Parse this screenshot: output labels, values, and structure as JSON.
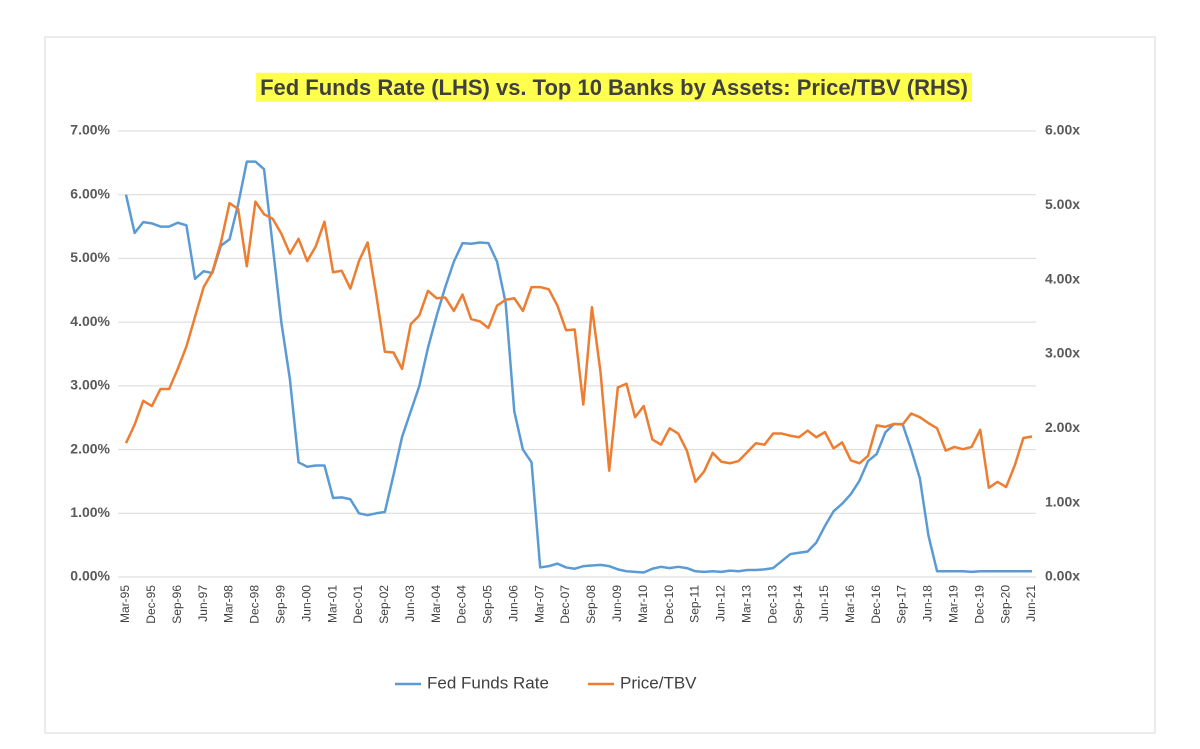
{
  "chart_data": {
    "type": "line",
    "title": "Fed Funds Rate (LHS) vs. Top 10 Banks by Assets: Price/TBV (RHS)",
    "categories": [
      "Mar-95",
      null,
      null,
      "Dec-95",
      null,
      null,
      "Sep-96",
      null,
      null,
      "Jun-97",
      null,
      null,
      "Mar-98",
      null,
      null,
      "Dec-98",
      null,
      null,
      "Sep-99",
      null,
      null,
      "Jun-00",
      null,
      null,
      "Mar-01",
      null,
      null,
      "Dec-01",
      null,
      null,
      "Sep-02",
      null,
      null,
      "Jun-03",
      null,
      null,
      "Mar-04",
      null,
      null,
      "Dec-04",
      null,
      null,
      "Sep-05",
      null,
      null,
      "Jun-06",
      null,
      null,
      "Mar-07",
      null,
      null,
      "Dec-07",
      null,
      null,
      "Sep-08",
      null,
      null,
      "Jun-09",
      null,
      null,
      "Mar-10",
      null,
      null,
      "Dec-10",
      null,
      null,
      "Sep-11",
      null,
      null,
      "Jun-12",
      null,
      null,
      "Mar-13",
      null,
      null,
      "Dec-13",
      null,
      null,
      "Sep-14",
      null,
      null,
      "Jun-15",
      null,
      null,
      "Mar-16",
      null,
      null,
      "Dec-16",
      null,
      null,
      "Sep-17",
      null,
      null,
      "Jun-18",
      null,
      null,
      "Mar-19",
      null,
      null,
      "Dec-19",
      null,
      null,
      "Sep-20",
      null,
      null,
      "Jun-21"
    ],
    "series": [
      {
        "name": "Fed Funds Rate",
        "color": "#5b9bd5",
        "axis": "y",
        "values": [
          6.0,
          5.4,
          5.57,
          5.55,
          5.5,
          5.5,
          5.56,
          5.52,
          4.68,
          4.8,
          4.77,
          5.2,
          5.3,
          5.85,
          6.52,
          6.52,
          6.4,
          5.2,
          4.0,
          3.1,
          1.8,
          1.73,
          1.75,
          1.75,
          1.24,
          1.25,
          1.22,
          1.0,
          0.97,
          1.0,
          1.02,
          1.6,
          2.2,
          2.6,
          3.0,
          3.6,
          4.1,
          4.55,
          4.95,
          5.24,
          5.23,
          5.25,
          5.24,
          4.95,
          4.3,
          2.6,
          2.0,
          1.8,
          0.15,
          0.17,
          0.21,
          0.15,
          0.13,
          0.17,
          0.18,
          0.19,
          0.17,
          0.12,
          0.09,
          0.08,
          0.07,
          0.13,
          0.16,
          0.14,
          0.16,
          0.14,
          0.09,
          0.08,
          0.09,
          0.08,
          0.1,
          0.09,
          0.11,
          0.11,
          0.12,
          0.14,
          0.25,
          0.36,
          0.38,
          0.4,
          0.54,
          0.8,
          1.03,
          1.15,
          1.3,
          1.51,
          1.82,
          1.93,
          2.27,
          2.4,
          2.4,
          2.0,
          1.55,
          0.65,
          0.09,
          0.09,
          0.09,
          0.09,
          0.08,
          0.09,
          0.09,
          0.09,
          0.09,
          0.09,
          0.09,
          0.09
        ]
      },
      {
        "name": "Price/TBV",
        "color": "#ed7d31",
        "axis": "y2",
        "values": [
          1.8,
          2.05,
          2.37,
          2.3,
          2.53,
          2.53,
          2.8,
          3.1,
          3.5,
          3.9,
          4.1,
          4.5,
          5.03,
          4.95,
          4.18,
          5.05,
          4.88,
          4.82,
          4.62,
          4.35,
          4.55,
          4.25,
          4.45,
          4.78,
          4.1,
          4.12,
          3.88,
          4.25,
          4.5,
          3.8,
          3.03,
          3.02,
          2.8,
          3.4,
          3.52,
          3.85,
          3.75,
          3.76,
          3.58,
          3.8,
          3.47,
          3.44,
          3.35,
          3.65,
          3.73,
          3.75,
          3.58,
          3.9,
          3.9,
          3.87,
          3.65,
          3.32,
          3.33,
          2.32,
          3.63,
          2.75,
          1.43,
          2.55,
          2.6,
          2.15,
          2.3,
          1.85,
          1.78,
          2.0,
          1.93,
          1.7,
          1.28,
          1.42,
          1.67,
          1.55,
          1.53,
          1.56,
          1.68,
          1.8,
          1.78,
          1.93,
          1.93,
          1.9,
          1.88,
          1.97,
          1.88,
          1.95,
          1.73,
          1.81,
          1.57,
          1.53,
          1.63,
          2.04,
          2.02,
          2.06,
          2.05,
          2.2,
          2.15,
          2.07,
          2.0,
          1.7,
          1.75,
          1.72,
          1.75,
          1.98,
          1.2,
          1.28,
          1.21,
          1.5,
          1.87,
          1.89
        ]
      }
    ],
    "ylim": [
      0,
      7
    ],
    "yticks": [
      {
        "value": 0,
        "label": "0.00%"
      },
      {
        "value": 1,
        "label": "1.00%"
      },
      {
        "value": 2,
        "label": "2.00%"
      },
      {
        "value": 3,
        "label": "3.00%"
      },
      {
        "value": 4,
        "label": "4.00%"
      },
      {
        "value": 5,
        "label": "5.00%"
      },
      {
        "value": 6,
        "label": "6.00%"
      },
      {
        "value": 7,
        "label": "7.00%"
      }
    ],
    "y2lim": [
      0,
      6
    ],
    "y2ticks": [
      {
        "value": 0,
        "label": "0.00x"
      },
      {
        "value": 1,
        "label": "1.00x"
      },
      {
        "value": 2,
        "label": "2.00x"
      },
      {
        "value": 3,
        "label": "3.00x"
      },
      {
        "value": 4,
        "label": "4.00x"
      },
      {
        "value": 5,
        "label": "5.00x"
      },
      {
        "value": 6,
        "label": "6.00x"
      }
    ],
    "grid": true,
    "legend": "bottom"
  }
}
